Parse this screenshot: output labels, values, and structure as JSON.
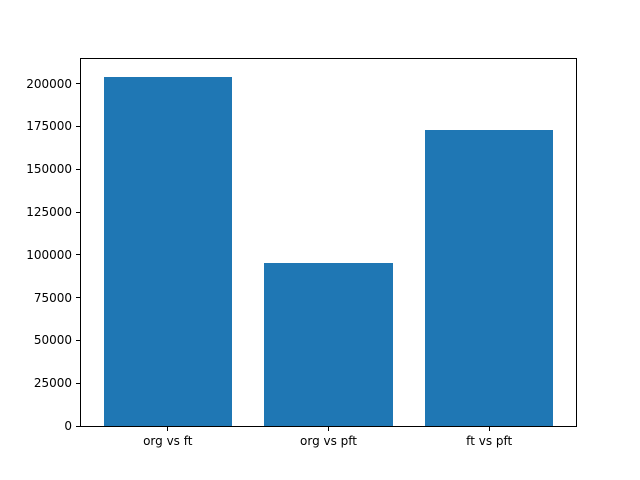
{
  "figure": {
    "background": "#ffffff",
    "spine_color": "#000000",
    "tick_color": "#000000"
  },
  "chart_data": {
    "type": "bar",
    "title": "",
    "xlabel": "",
    "ylabel": "",
    "categories": [
      "org vs ft",
      "org vs pft",
      "ft vs pft"
    ],
    "values": [
      204000,
      95000,
      173000
    ],
    "bar_color": "#1f77b4",
    "bar_width": 0.8,
    "x_positions": [
      0,
      1,
      2
    ],
    "xlim": [
      -0.54,
      2.54
    ],
    "ylim": [
      0,
      214400
    ],
    "yticks": [
      0,
      25000,
      50000,
      75000,
      100000,
      125000,
      150000,
      175000,
      200000
    ],
    "ytick_labels": [
      "0",
      "25000",
      "50000",
      "75000",
      "100000",
      "125000",
      "150000",
      "175000",
      "200000"
    ],
    "grid": false,
    "legend": "none"
  }
}
